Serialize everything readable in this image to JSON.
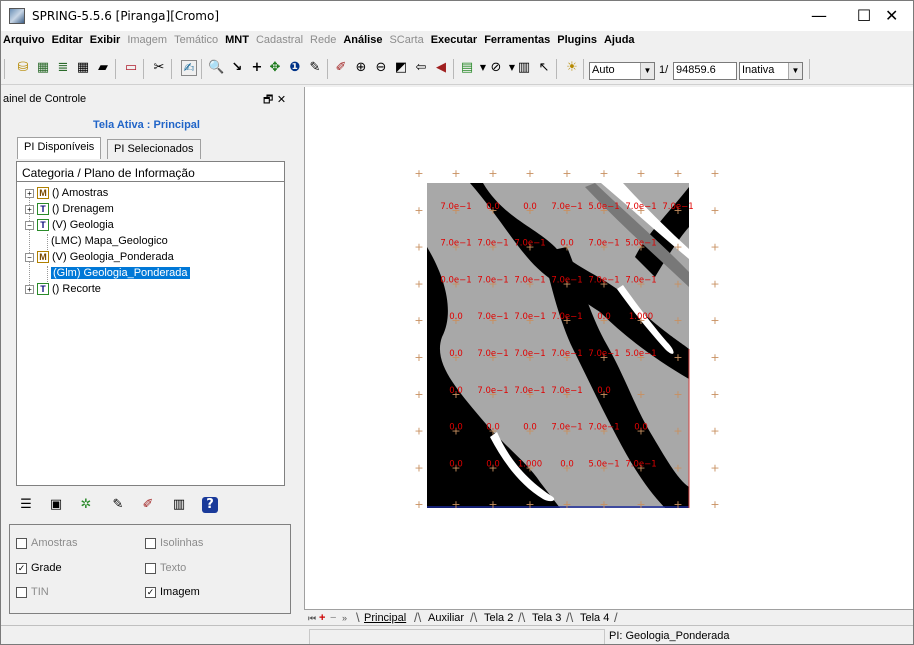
{
  "window": {
    "title": "SPRING-5.5.6 [Piranga][Cromo]",
    "minimize": "—",
    "maximize": "☐",
    "close": "✕"
  },
  "menu": [
    {
      "label": "Arquivo",
      "style": "bold"
    },
    {
      "label": "Editar",
      "style": "bold"
    },
    {
      "label": "Exibir",
      "style": "bold"
    },
    {
      "label": "Imagem",
      "style": "dim"
    },
    {
      "label": "Temático",
      "style": "dim"
    },
    {
      "label": "MNT",
      "style": "bold"
    },
    {
      "label": "Cadastral",
      "style": "dim"
    },
    {
      "label": "Rede",
      "style": "dim"
    },
    {
      "label": "Análise",
      "style": "bold"
    },
    {
      "label": "SCarta",
      "style": "dim"
    },
    {
      "label": "Executar",
      "style": "bold"
    },
    {
      "label": "Ferramentas",
      "style": "bold"
    },
    {
      "label": "Plugins",
      "style": "bold"
    },
    {
      "label": "Ajuda",
      "style": "bold"
    }
  ],
  "toolbar": {
    "zoom_mode": "Auto",
    "scale_prefix": "1/",
    "scale_value": "94859.6",
    "state": "Inativa"
  },
  "panel": {
    "title": "ainel de Controle",
    "controls": "🗗 ✕",
    "active_label": "Tela Ativa : Principal",
    "tabs": [
      "PI Disponíveis",
      "PI Selecionados"
    ],
    "tree_header": "Categoria / Plano de Informação",
    "tree": [
      {
        "expander": "+",
        "badge": "M",
        "label": "() Amostras"
      },
      {
        "expander": "+",
        "badge": "T",
        "label": "() Drenagem"
      },
      {
        "expander": "−",
        "badge": "T",
        "label": "(V) Geologia"
      },
      {
        "expander": "",
        "badge": "",
        "label": "(LMC) Mapa_Geologico"
      },
      {
        "expander": "−",
        "badge": "M",
        "label": "(V) Geologia_Ponderada"
      },
      {
        "expander": "",
        "badge": "",
        "label": "(Glm) Geologia_Ponderada",
        "selected": true
      },
      {
        "expander": "+",
        "badge": "T",
        "label": "() Recorte"
      }
    ],
    "checkboxes": [
      {
        "label": "Amostras",
        "checked": false,
        "enabled": false
      },
      {
        "label": "Isolinhas",
        "checked": false,
        "enabled": false
      },
      {
        "label": "Grade",
        "checked": true,
        "enabled": true
      },
      {
        "label": "Texto",
        "checked": false,
        "enabled": false
      },
      {
        "label": "TIN",
        "checked": false,
        "enabled": false
      },
      {
        "label": "Imagem",
        "checked": true,
        "enabled": true
      }
    ]
  },
  "grid_labels": [
    [
      "7.0e−1",
      "0.0",
      "0.0",
      "7.0e−1",
      "5.0e−1",
      "7.0e−1",
      "7.0e−1"
    ],
    [
      "7.0e−1",
      "7.0e−1",
      "7.0e−1",
      "0.0",
      "7.0e−1",
      "5.0e−1",
      ""
    ],
    [
      "0.0e−1",
      "7.0e−1",
      "7.0e−1",
      "7.0e−1",
      "7.0e−1",
      "7.0e−1",
      ""
    ],
    [
      "0.0",
      "7.0e−1",
      "7.0e−1",
      "7.0e−1",
      "0.0",
      "1.000",
      ""
    ],
    [
      "0.0",
      "7.0e−1",
      "7.0e−1",
      "7.0e−1",
      "7.0e−1",
      "5.0e−1",
      ""
    ],
    [
      "0.0",
      "7.0e−1",
      "7.0e−1",
      "7.0e−1",
      "0.0",
      "",
      ""
    ],
    [
      "0.0",
      "0.0",
      "0.0",
      "7.0e−1",
      "7.0e−1",
      "0.0",
      ""
    ],
    [
      "0.0",
      "0.0",
      "1.000",
      "0.0",
      "5.0e−1",
      "7.0e−1",
      ""
    ]
  ],
  "bottom_tabs": [
    "Principal",
    "Auxiliar",
    "Tela 2",
    "Tela 3",
    "Tela 4"
  ],
  "status": {
    "text": "PI: Geologia_Ponderada"
  },
  "colors": {
    "selection": "#0078d7",
    "active_label": "#2165c8",
    "grid_label": "#e00000",
    "map_black": "#000000",
    "map_grey": "#a8a8a8",
    "map_dark_grey": "#787878",
    "map_white": "#ffffff"
  }
}
